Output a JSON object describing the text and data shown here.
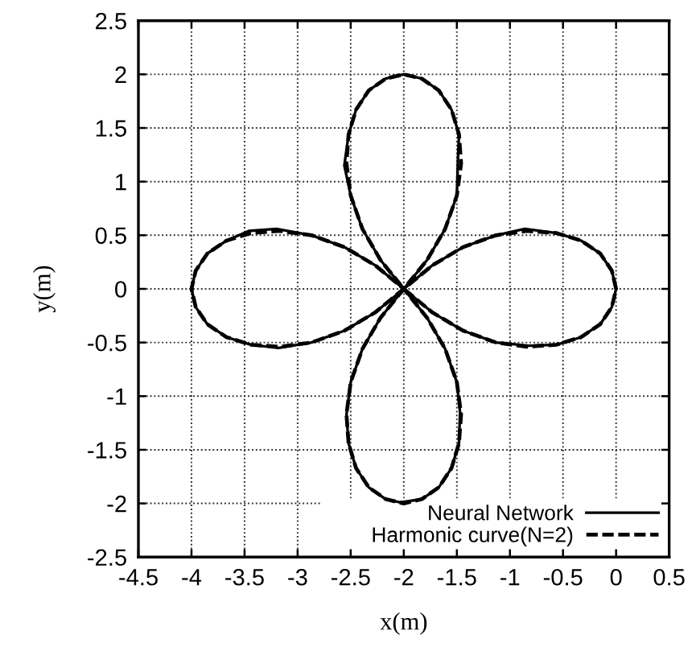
{
  "chart_data": {
    "type": "line",
    "xlabel": "x(m)",
    "ylabel": "y(m)",
    "xlim": [
      -4.5,
      0.5
    ],
    "xticks": [
      -4.5,
      -4,
      -3.5,
      -3,
      -2.5,
      -2,
      -1.5,
      -1,
      -0.5,
      0,
      0.5
    ],
    "ylim": [
      -2.5,
      2.5
    ],
    "yticks": [
      -2.5,
      -2,
      -1.5,
      -1,
      -0.5,
      0,
      0.5,
      1,
      1.5,
      2,
      2.5
    ],
    "grid": true,
    "legend": "bottom right",
    "series": [
      {
        "name": "Neural Network",
        "color": "#000000",
        "line_style": "solid",
        "x": [
          0,
          -0.04,
          -0.15,
          -0.33,
          -0.56,
          -0.86,
          -1.13,
          -1.44,
          -1.73,
          -2,
          -2.22,
          -2.39,
          -2.5,
          -2.54,
          -2.52,
          -2.45,
          -2.33,
          -2.17,
          -2.03,
          -1.83,
          -1.67,
          -1.55,
          -1.48,
          -1.47,
          -1.5,
          -1.61,
          -1.78,
          -2,
          -2.27,
          -2.56,
          -2.87,
          -3.2,
          -3.46,
          -3.67,
          -3.85,
          -3.96,
          -4,
          -3.96,
          -3.85,
          -3.67,
          -3.44,
          -3.18,
          -2.87,
          -2.56,
          -2.27,
          -2,
          -1.78,
          -1.61,
          -1.5,
          -1.49,
          -1.48,
          -1.55,
          -1.67,
          -1.83,
          -2,
          -2.17,
          -2.33,
          -2.45,
          -2.52,
          -2.56,
          -2.5,
          -2.39,
          -2.22,
          -2,
          -1.73,
          -1.44,
          -1.13,
          -0.82,
          -0.56,
          -0.33,
          -0.15,
          -0.04,
          0,
          -0.04
        ],
        "values": [
          0,
          0.17,
          0.33,
          0.45,
          0.52,
          0.56,
          0.5,
          0.39,
          0.22,
          0,
          -0.27,
          -0.56,
          -0.87,
          -1.17,
          -1.44,
          -1.67,
          -1.85,
          -1.96,
          -1.99,
          -1.96,
          -1.85,
          -1.67,
          -1.44,
          -1.15,
          -0.87,
          -0.56,
          -0.27,
          0,
          0.22,
          0.39,
          0.5,
          0.56,
          0.54,
          0.45,
          0.33,
          0.17,
          0,
          -0.17,
          -0.33,
          -0.45,
          -0.52,
          -0.55,
          -0.5,
          -0.39,
          -0.22,
          0,
          0.27,
          0.56,
          0.87,
          1.2,
          1.44,
          1.67,
          1.85,
          1.96,
          2,
          1.96,
          1.85,
          1.67,
          1.44,
          1.15,
          0.87,
          0.56,
          0.27,
          0,
          -0.22,
          -0.39,
          -0.5,
          -0.53,
          -0.52,
          -0.45,
          -0.33,
          -0.17,
          0,
          0.17
        ]
      },
      {
        "name": "Harmonic curve(N=2)",
        "color": "#000000",
        "line_style": "dashed",
        "x": [
          0,
          -0.04,
          -0.15,
          -0.33,
          -0.56,
          -0.84,
          -1.13,
          -1.44,
          -1.73,
          -2,
          -2.22,
          -2.39,
          -2.5,
          -2.54,
          -2.52,
          -2.45,
          -2.33,
          -2.17,
          -2,
          -1.83,
          -1.67,
          -1.55,
          -1.48,
          -1.46,
          -1.5,
          -1.61,
          -1.78,
          -2,
          -2.27,
          -2.56,
          -2.87,
          -3.17,
          -3.44,
          -3.67,
          -3.85,
          -3.96,
          -4,
          -3.96,
          -3.85,
          -3.67,
          -3.44,
          -3.17,
          -2.87,
          -2.56,
          -2.27,
          -2,
          -1.78,
          -1.61,
          -1.5,
          -1.46,
          -1.48,
          -1.55,
          -1.67,
          -1.83,
          -2,
          -2.17,
          -2.33,
          -2.45,
          -2.52,
          -2.54,
          -2.5,
          -2.39,
          -2.22,
          -2,
          -1.73,
          -1.44,
          -1.13,
          -0.84,
          -0.56,
          -0.33,
          -0.15,
          -0.04,
          0,
          -0.04
        ],
        "values": [
          0,
          0.17,
          0.33,
          0.45,
          0.52,
          0.54,
          0.5,
          0.39,
          0.22,
          0,
          -0.27,
          -0.56,
          -0.87,
          -1.17,
          -1.44,
          -1.67,
          -1.85,
          -1.96,
          -2,
          -1.96,
          -1.85,
          -1.67,
          -1.44,
          -1.17,
          -0.87,
          -0.56,
          -0.27,
          0,
          0.22,
          0.39,
          0.5,
          0.54,
          0.52,
          0.45,
          0.33,
          0.17,
          0,
          -0.17,
          -0.33,
          -0.45,
          -0.52,
          -0.54,
          -0.5,
          -0.39,
          -0.22,
          0,
          0.27,
          0.56,
          0.87,
          1.17,
          1.44,
          1.67,
          1.85,
          1.96,
          2,
          1.96,
          1.85,
          1.67,
          1.44,
          1.17,
          0.87,
          0.56,
          0.27,
          0,
          -0.22,
          -0.39,
          -0.5,
          -0.54,
          -0.52,
          -0.45,
          -0.33,
          -0.17,
          0,
          0.17
        ]
      }
    ]
  }
}
